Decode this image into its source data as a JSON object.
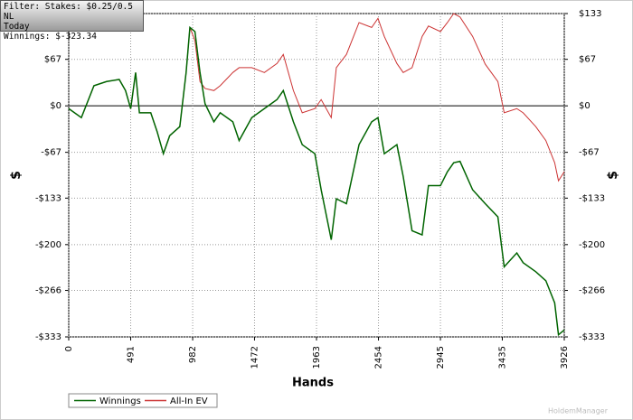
{
  "info": {
    "lines": [
      "Filter: Stakes: $0.25/0.5 NL",
      "Today",
      "Winnings: $-323.34"
    ]
  },
  "chart_data": {
    "type": "line",
    "xlabel": "Hands",
    "ylabel": "$",
    "y2label": "$",
    "x": [
      0,
      100,
      200,
      300,
      400,
      450,
      491,
      530,
      560,
      650,
      700,
      750,
      800,
      880,
      930,
      960,
      1000,
      1040,
      1080,
      1150,
      1200,
      1300,
      1350,
      1450,
      1550,
      1650,
      1700,
      1780,
      1850,
      1950,
      2000,
      2080,
      2120,
      2200,
      2300,
      2400,
      2450,
      2500,
      2600,
      2650,
      2720,
      2800,
      2850,
      2945,
      3000,
      3050,
      3100,
      3200,
      3300,
      3400,
      3450,
      3550,
      3600,
      3700,
      3780,
      3850,
      3880,
      3926
    ],
    "series": [
      {
        "name": "Winnings",
        "color": "#006400",
        "values": [
          -4,
          -17,
          29,
          35,
          38,
          22,
          -4,
          48,
          -10,
          -10,
          -37,
          -69,
          -43,
          -30,
          48,
          113,
          107,
          48,
          3,
          -23,
          -10,
          -23,
          -50,
          -17,
          -4,
          9,
          22,
          -23,
          -56,
          -69,
          -121,
          -193,
          -134,
          -141,
          -56,
          -23,
          -17,
          -69,
          -56,
          -102,
          -180,
          -186,
          -115,
          -115,
          -95,
          -82,
          -80,
          -121,
          -141,
          -160,
          -232,
          -212,
          -226,
          -239,
          -252,
          -284,
          -330,
          -323
        ]
      },
      {
        "name": "All-In EV",
        "color": "#cc3333",
        "values": [
          -4,
          -17,
          29,
          35,
          38,
          22,
          -4,
          48,
          -10,
          -10,
          -37,
          -69,
          -43,
          -30,
          48,
          113,
          94,
          35,
          25,
          22,
          29,
          48,
          55,
          55,
          48,
          61,
          74,
          22,
          -10,
          -4,
          9,
          -17,
          55,
          74,
          120,
          113,
          126,
          100,
          61,
          48,
          55,
          100,
          115,
          107,
          120,
          133,
          128,
          100,
          60,
          35,
          -10,
          -4,
          -10,
          -30,
          -50,
          -82,
          -108,
          -95
        ]
      }
    ],
    "xlim": [
      0,
      3926
    ],
    "xticks": [
      0,
      491,
      982,
      1472,
      1963,
      2454,
      2945,
      3435,
      3926
    ],
    "ylim": [
      -333,
      133
    ],
    "yticks": [
      {
        "value": 133,
        "label": "$133"
      },
      {
        "value": 67,
        "label": "$67"
      },
      {
        "value": 0,
        "label": "$0"
      },
      {
        "value": -67,
        "label": "-$67"
      },
      {
        "value": -133,
        "label": "-$133"
      },
      {
        "value": -200,
        "label": "-$200"
      },
      {
        "value": -266,
        "label": "-$266"
      },
      {
        "value": -333,
        "label": "-$333"
      }
    ],
    "y2lim": [
      -333,
      133
    ],
    "y2ticks": [
      {
        "value": 133,
        "label": "$133"
      },
      {
        "value": 67,
        "label": "$67"
      },
      {
        "value": 0,
        "label": "$0"
      },
      {
        "value": -67,
        "label": "-$67"
      },
      {
        "value": -133,
        "label": "-$133"
      },
      {
        "value": -200,
        "label": "-$200"
      },
      {
        "value": -266,
        "label": "-$266"
      },
      {
        "value": -333,
        "label": "-$333"
      }
    ],
    "grid": true,
    "legend": "bottom-left"
  }
}
